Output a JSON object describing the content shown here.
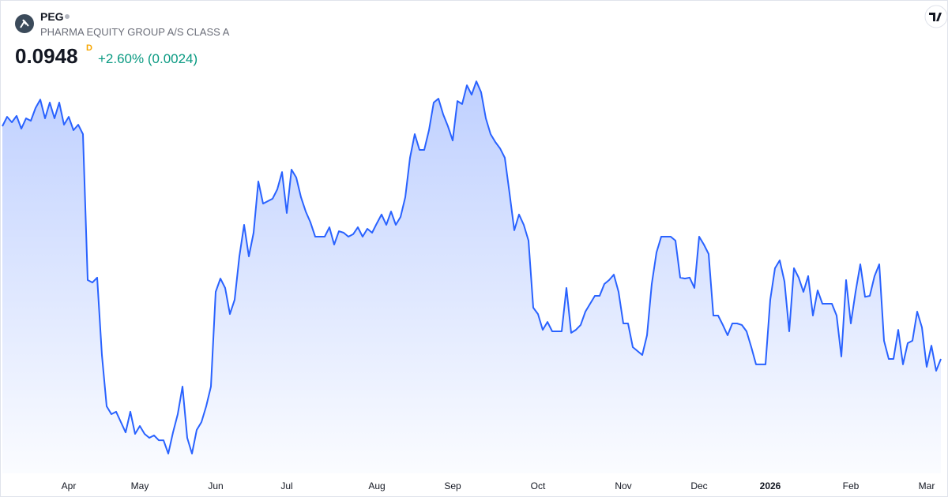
{
  "header": {
    "symbol": "PEG",
    "name": "PHARMA EQUITY GROUP A/S CLASS A",
    "price": "0.0948",
    "price_flag": "D",
    "change": "+2.60% (0.0024)"
  },
  "chart_data": {
    "type": "area",
    "color": "#2962ff",
    "ylim": [
      0.0668,
      0.1676
    ],
    "values": [
      0.142,
      0.1439,
      0.1428,
      0.1441,
      0.1415,
      0.1436,
      0.1431,
      0.1457,
      0.1474,
      0.1436,
      0.1468,
      0.1436,
      0.1468,
      0.1423,
      0.1439,
      0.1412,
      0.1423,
      0.1404,
      0.1108,
      0.1103,
      0.1113,
      0.0956,
      0.0852,
      0.0836,
      0.0841,
      0.082,
      0.0799,
      0.0841,
      0.0796,
      0.0812,
      0.0796,
      0.0788,
      0.0793,
      0.0783,
      0.0783,
      0.0756,
      0.0799,
      0.0836,
      0.0892,
      0.0788,
      0.0756,
      0.0804,
      0.082,
      0.0852,
      0.0892,
      0.1084,
      0.1111,
      0.1092,
      0.1039,
      0.1068,
      0.1156,
      0.122,
      0.1156,
      0.1204,
      0.1308,
      0.1263,
      0.1268,
      0.1273,
      0.1292,
      0.1327,
      0.1244,
      0.1332,
      0.1316,
      0.1276,
      0.1247,
      0.1225,
      0.1196,
      0.1196,
      0.1196,
      0.1215,
      0.118,
      0.1207,
      0.1204,
      0.1196,
      0.1201,
      0.1215,
      0.1196,
      0.1212,
      0.1204,
      0.1223,
      0.1241,
      0.122,
      0.1247,
      0.122,
      0.1236,
      0.1276,
      0.1356,
      0.1404,
      0.1372,
      0.1372,
      0.1412,
      0.1468,
      0.1476,
      0.1444,
      0.142,
      0.1391,
      0.1471,
      0.1465,
      0.1503,
      0.1484,
      0.1511,
      0.1489,
      0.1436,
      0.1404,
      0.1388,
      0.1375,
      0.1356,
      0.1284,
      0.1209,
      0.1241,
      0.122,
      0.1188,
      0.1052,
      0.1039,
      0.1007,
      0.1023,
      0.1004,
      0.1004,
      0.1004,
      0.1092,
      0.1001,
      0.1007,
      0.1017,
      0.1044,
      0.106,
      0.1076,
      0.1076,
      0.11,
      0.1108,
      0.1119,
      0.1084,
      0.102,
      0.102,
      0.0972,
      0.0964,
      0.0956,
      0.0996,
      0.11,
      0.1164,
      0.1196,
      0.1196,
      0.1196,
      0.1188,
      0.1113,
      0.1111,
      0.1113,
      0.1092,
      0.1196,
      0.118,
      0.1161,
      0.1036,
      0.1036,
      0.1017,
      0.0996,
      0.102,
      0.102,
      0.1017,
      0.1004,
      0.0972,
      0.0937,
      0.0937,
      0.0937,
      0.1068,
      0.1132,
      0.1148,
      0.1105,
      0.1004,
      0.1132,
      0.1113,
      0.1084,
      0.1116,
      0.1036,
      0.1087,
      0.106,
      0.106,
      0.106,
      0.1036,
      0.0953,
      0.1108,
      0.102,
      0.1084,
      0.114,
      0.1074,
      0.1076,
      0.1116,
      0.114,
      0.0985,
      0.0948,
      0.0948,
      0.1007,
      0.0937,
      0.098,
      0.0985,
      0.1044,
      0.1012,
      0.0932,
      0.0975,
      0.0924,
      0.0948
    ],
    "xticks": [
      {
        "value": 14,
        "label": "Apr"
      },
      {
        "value": 29,
        "label": "May"
      },
      {
        "value": 45,
        "label": "Jun"
      },
      {
        "value": 60,
        "label": "Jul"
      },
      {
        "value": 79,
        "label": "Aug"
      },
      {
        "value": 95,
        "label": "Sep"
      },
      {
        "value": 113,
        "label": "Oct"
      },
      {
        "value": 131,
        "label": "Nov"
      },
      {
        "value": 147,
        "label": "Dec"
      },
      {
        "value": 162,
        "label": "2026"
      },
      {
        "value": 179,
        "label": "Feb"
      },
      {
        "value": 195,
        "label": "Mar"
      }
    ]
  }
}
